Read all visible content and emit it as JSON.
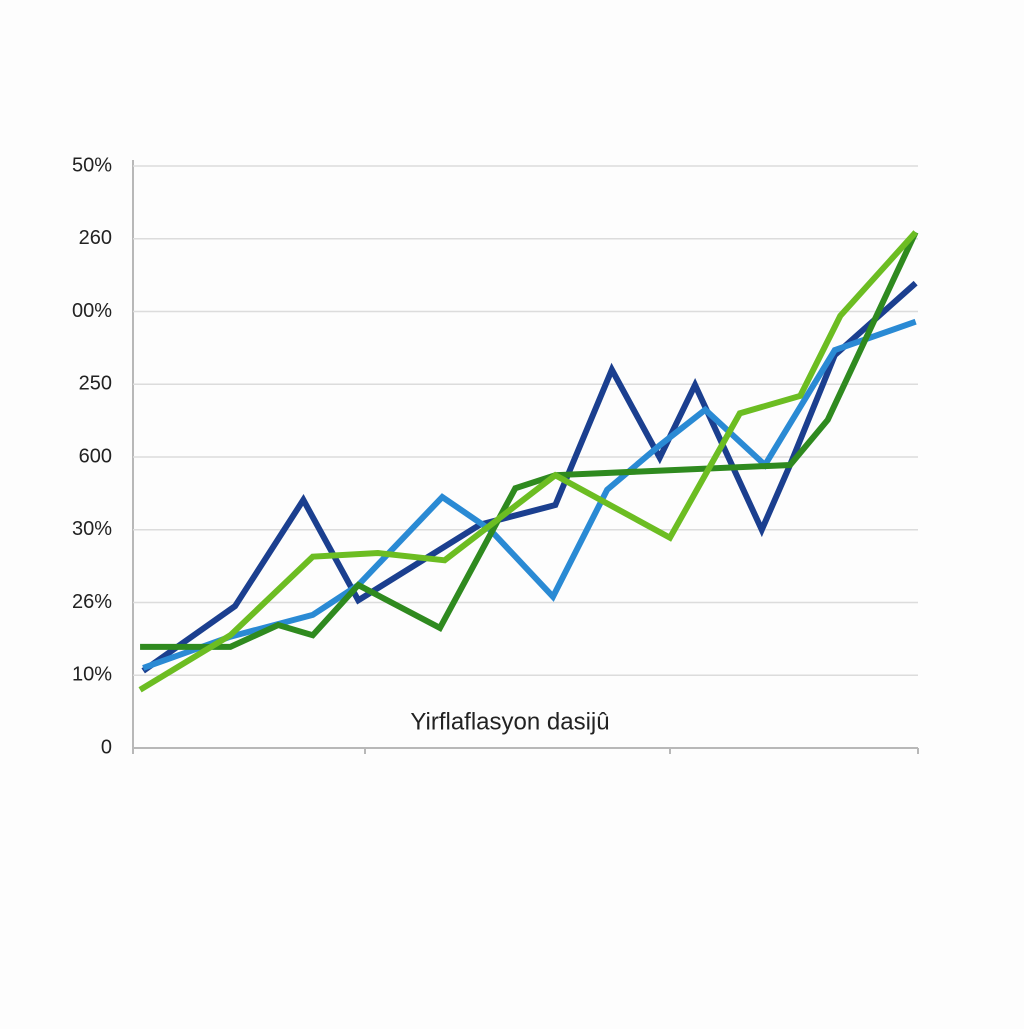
{
  "chart_data": {
    "type": "line",
    "x_label": "Yirflaflasyon dasijû",
    "xlim": [
      0,
      100
    ],
    "ylim": [
      0,
      8
    ],
    "yticks": [
      0,
      {
        "value": 1,
        "label": "10%"
      },
      {
        "value": 2,
        "label": "26%"
      },
      {
        "value": 3,
        "label": "30%"
      },
      {
        "value": 4,
        "label": "600"
      },
      {
        "value": 5,
        "label": "250"
      },
      {
        "value": 6,
        "label": "00%"
      },
      {
        "value": 7,
        "label": "260"
      },
      {
        "value": 8,
        "label": "50%"
      }
    ],
    "grid": true,
    "series": [
      {
        "color": "#1b3f8f",
        "x": [
          1.3,
          13.0,
          21.7,
          28.7,
          44.2,
          53.8,
          61.0,
          67.1,
          71.6,
          80.1,
          83.7,
          89.4,
          99.7
        ],
        "values": [
          1.06,
          1.95,
          3.41,
          2.03,
          3.07,
          3.34,
          5.2,
          3.99,
          4.99,
          3.0,
          3.89,
          5.4,
          6.39
        ]
      },
      {
        "color": "#2a8ad4",
        "x": [
          1.3,
          12.4,
          22.9,
          28.7,
          39.4,
          45.5,
          53.5,
          60.4,
          67.1,
          72.9,
          80.5,
          89.4,
          99.7
        ],
        "values": [
          1.1,
          1.53,
          1.83,
          2.24,
          3.45,
          3.0,
          2.08,
          3.55,
          4.16,
          4.65,
          3.89,
          5.47,
          5.86
        ]
      },
      {
        "color": "#2f8a1f",
        "x": [
          0.9,
          12.4,
          18.5,
          22.9,
          28.7,
          39.1,
          48.7,
          53.8,
          83.7,
          88.5,
          99.7
        ],
        "values": [
          1.39,
          1.39,
          1.69,
          1.55,
          2.24,
          1.65,
          3.57,
          3.75,
          3.89,
          4.51,
          7.09
        ]
      },
      {
        "color": "#6cbd22",
        "x": [
          0.9,
          12.4,
          22.9,
          31.2,
          39.7,
          53.8,
          68.4,
          77.3,
          85.0,
          90.1,
          99.7
        ],
        "values": [
          0.8,
          1.55,
          2.63,
          2.68,
          2.58,
          3.75,
          2.89,
          4.6,
          4.84,
          5.94,
          7.09
        ]
      }
    ]
  }
}
